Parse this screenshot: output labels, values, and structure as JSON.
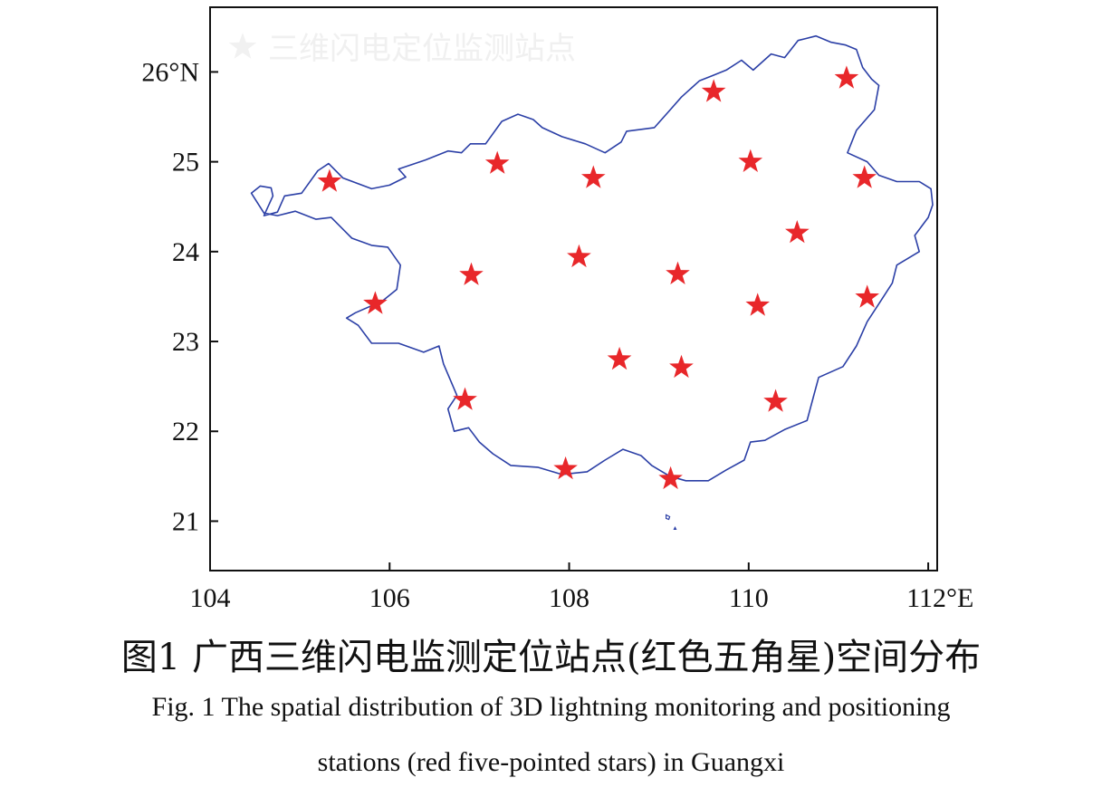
{
  "map": {
    "region": "Guangxi",
    "x_axis": {
      "range": [
        104,
        112.1
      ],
      "ticks": [
        104,
        106,
        108,
        110,
        112
      ],
      "tick_labels": [
        "104",
        "106",
        "108",
        "110",
        "112°E"
      ]
    },
    "y_axis": {
      "range": [
        20.45,
        26.72
      ],
      "ticks": [
        21,
        22,
        23,
        24,
        25,
        26
      ],
      "tick_labels": [
        "21",
        "22",
        "23",
        "24",
        "25",
        "26°N"
      ]
    },
    "colors": {
      "boundary": "#2b3fa6",
      "station_marker": "#e8272a",
      "axes": "#111111"
    },
    "legend": {
      "label": "三维闪电定位监测站点",
      "marker": "star-icon",
      "placement": "top-left"
    },
    "stations": [
      {
        "lon": 105.33,
        "lat": 24.78
      },
      {
        "lon": 105.84,
        "lat": 23.42
      },
      {
        "lon": 106.91,
        "lat": 23.74
      },
      {
        "lon": 106.84,
        "lat": 22.35
      },
      {
        "lon": 107.2,
        "lat": 24.98
      },
      {
        "lon": 108.27,
        "lat": 24.82
      },
      {
        "lon": 108.11,
        "lat": 23.94
      },
      {
        "lon": 108.56,
        "lat": 22.8
      },
      {
        "lon": 107.96,
        "lat": 21.58
      },
      {
        "lon": 109.61,
        "lat": 25.78
      },
      {
        "lon": 109.21,
        "lat": 23.75
      },
      {
        "lon": 109.25,
        "lat": 22.71
      },
      {
        "lon": 109.13,
        "lat": 21.47
      },
      {
        "lon": 110.02,
        "lat": 25.0
      },
      {
        "lon": 110.54,
        "lat": 24.21
      },
      {
        "lon": 110.1,
        "lat": 23.4
      },
      {
        "lon": 110.3,
        "lat": 22.33
      },
      {
        "lon": 111.09,
        "lat": 25.93
      },
      {
        "lon": 111.29,
        "lat": 24.82
      },
      {
        "lon": 111.32,
        "lat": 23.49
      }
    ],
    "boundary": [
      [
        104.46,
        24.65
      ],
      [
        104.56,
        24.73
      ],
      [
        104.68,
        24.71
      ],
      [
        104.7,
        24.62
      ],
      [
        104.6,
        24.4
      ],
      [
        104.75,
        24.44
      ],
      [
        104.83,
        24.62
      ],
      [
        105.02,
        24.65
      ],
      [
        105.2,
        24.9
      ],
      [
        105.32,
        24.98
      ],
      [
        105.48,
        24.82
      ],
      [
        105.8,
        24.7
      ],
      [
        106.0,
        24.74
      ],
      [
        106.18,
        24.83
      ],
      [
        106.1,
        24.92
      ],
      [
        106.4,
        25.02
      ],
      [
        106.65,
        25.12
      ],
      [
        106.8,
        25.1
      ],
      [
        106.9,
        25.2
      ],
      [
        107.07,
        25.2
      ],
      [
        107.25,
        25.45
      ],
      [
        107.43,
        25.53
      ],
      [
        107.6,
        25.47
      ],
      [
        107.7,
        25.38
      ],
      [
        107.92,
        25.28
      ],
      [
        108.18,
        25.2
      ],
      [
        108.4,
        25.1
      ],
      [
        108.58,
        25.22
      ],
      [
        108.64,
        25.34
      ],
      [
        108.95,
        25.38
      ],
      [
        109.1,
        25.55
      ],
      [
        109.25,
        25.72
      ],
      [
        109.45,
        25.9
      ],
      [
        109.6,
        25.96
      ],
      [
        109.75,
        26.02
      ],
      [
        109.92,
        26.13
      ],
      [
        110.05,
        26.02
      ],
      [
        110.25,
        26.2
      ],
      [
        110.4,
        26.16
      ],
      [
        110.55,
        26.35
      ],
      [
        110.75,
        26.4
      ],
      [
        110.92,
        26.33
      ],
      [
        111.08,
        26.3
      ],
      [
        111.2,
        26.25
      ],
      [
        111.27,
        26.05
      ],
      [
        111.37,
        25.92
      ],
      [
        111.45,
        25.85
      ],
      [
        111.4,
        25.58
      ],
      [
        111.2,
        25.35
      ],
      [
        111.1,
        25.1
      ],
      [
        111.32,
        25.0
      ],
      [
        111.45,
        24.85
      ],
      [
        111.65,
        24.78
      ],
      [
        111.9,
        24.78
      ],
      [
        112.03,
        24.7
      ],
      [
        112.05,
        24.52
      ],
      [
        112.0,
        24.38
      ],
      [
        111.85,
        24.18
      ],
      [
        111.9,
        24.0
      ],
      [
        111.65,
        23.85
      ],
      [
        111.6,
        23.65
      ],
      [
        111.45,
        23.42
      ],
      [
        111.32,
        23.22
      ],
      [
        111.2,
        22.95
      ],
      [
        111.05,
        22.72
      ],
      [
        110.78,
        22.6
      ],
      [
        110.72,
        22.38
      ],
      [
        110.65,
        22.12
      ],
      [
        110.4,
        22.02
      ],
      [
        110.18,
        21.9
      ],
      [
        110.02,
        21.88
      ],
      [
        109.95,
        21.68
      ],
      [
        109.75,
        21.57
      ],
      [
        109.55,
        21.45
      ],
      [
        109.3,
        21.45
      ],
      [
        109.12,
        21.5
      ],
      [
        108.92,
        21.62
      ],
      [
        108.8,
        21.73
      ],
      [
        108.6,
        21.8
      ],
      [
        108.4,
        21.68
      ],
      [
        108.2,
        21.55
      ],
      [
        107.92,
        21.52
      ],
      [
        107.65,
        21.6
      ],
      [
        107.35,
        21.62
      ],
      [
        107.15,
        21.75
      ],
      [
        107.0,
        21.88
      ],
      [
        106.88,
        22.04
      ],
      [
        106.72,
        22.0
      ],
      [
        106.65,
        22.25
      ],
      [
        106.75,
        22.4
      ],
      [
        106.6,
        22.75
      ],
      [
        106.55,
        22.95
      ],
      [
        106.38,
        22.88
      ],
      [
        106.1,
        22.98
      ],
      [
        105.8,
        22.98
      ],
      [
        105.65,
        23.18
      ],
      [
        105.52,
        23.26
      ],
      [
        105.62,
        23.32
      ],
      [
        105.92,
        23.45
      ],
      [
        106.08,
        23.58
      ],
      [
        106.12,
        23.85
      ],
      [
        105.98,
        24.05
      ],
      [
        105.8,
        24.07
      ],
      [
        105.58,
        24.15
      ],
      [
        105.35,
        24.38
      ],
      [
        105.18,
        24.36
      ],
      [
        104.95,
        24.45
      ],
      [
        104.75,
        24.4
      ],
      [
        104.6,
        24.43
      ],
      [
        104.46,
        24.65
      ]
    ],
    "islands": [
      [
        [
          109.08,
          21.07
        ],
        [
          109.12,
          21.05
        ],
        [
          109.11,
          21.02
        ],
        [
          109.08,
          21.03
        ],
        [
          109.08,
          21.07
        ]
      ],
      [
        [
          109.18,
          20.93
        ],
        [
          109.19,
          20.91
        ],
        [
          109.17,
          20.91
        ],
        [
          109.18,
          20.93
        ]
      ]
    ]
  },
  "caption": {
    "cn": "图1 广西三维闪电监测定位站点(红色五角星)空间分布",
    "en_line1": "Fig. 1 The spatial distribution of 3D lightning monitoring and positioning",
    "en_line2": "stations (red five-pointed stars) in Guangxi"
  }
}
